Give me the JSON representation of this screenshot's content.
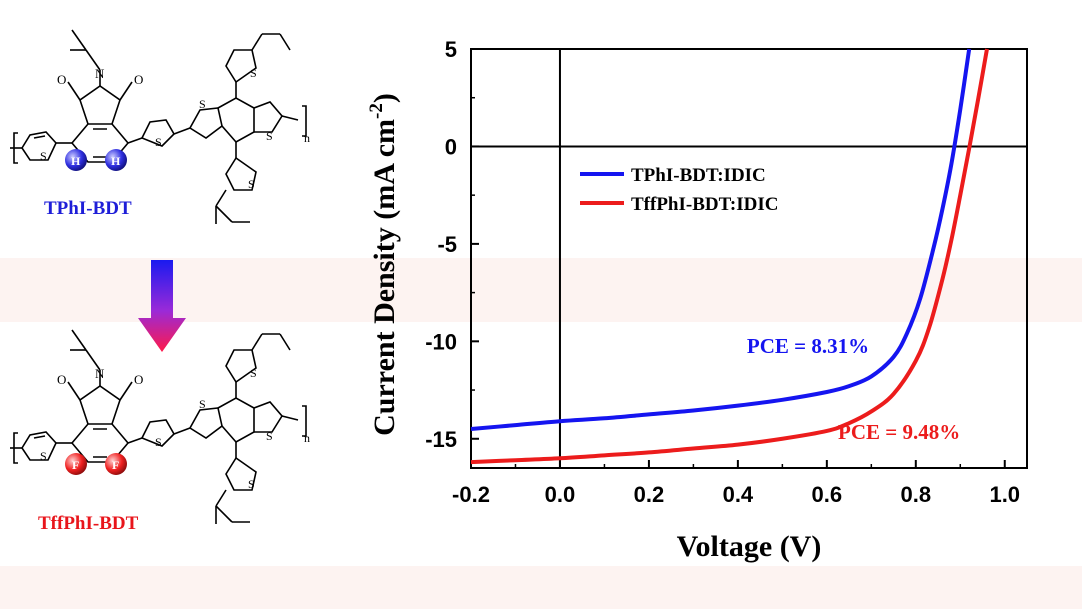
{
  "molecules": {
    "top_name": "TPhI-BDT",
    "bottom_name": "TffPhI-BDT",
    "top_substituent": "H",
    "bottom_substituent": "F",
    "top_color": "#1e1ed8",
    "bottom_color": "#e8151b",
    "sulfur": "S",
    "oxygen": "O",
    "nitrogen": "N",
    "repeat": "n"
  },
  "chart_data": {
    "type": "line",
    "xlabel": "Voltage (V)",
    "ylabel": "Current Density (mA cm",
    "ylabel_sup": "-2",
    "ylabel_end": ")",
    "xlim": [
      -0.2,
      1.05
    ],
    "ylim": [
      -16.5,
      5
    ],
    "xticks": [
      -0.2,
      0.0,
      0.2,
      0.4,
      0.6,
      0.8,
      1.0
    ],
    "xtick_labels": [
      "-0.2",
      "0.0",
      "0.2",
      "0.4",
      "0.6",
      "0.8",
      "1.0"
    ],
    "yticks": [
      5,
      0,
      -5,
      -10,
      -15
    ],
    "ytick_labels": [
      "5",
      "0",
      "-5",
      "-10",
      "-15"
    ],
    "legend_position": "upper-left",
    "series": [
      {
        "name": "TPhI-BDT:IDIC",
        "color": "#1515f0",
        "x": [
          -0.2,
          -0.1,
          0.0,
          0.1,
          0.2,
          0.3,
          0.4,
          0.5,
          0.6,
          0.65,
          0.7,
          0.75,
          0.78,
          0.81,
          0.84,
          0.86,
          0.88,
          0.9,
          0.92
        ],
        "y": [
          -14.5,
          -14.3,
          -14.1,
          -13.95,
          -13.75,
          -13.55,
          -13.3,
          -13.0,
          -12.6,
          -12.3,
          -11.8,
          -10.8,
          -9.6,
          -7.8,
          -5.2,
          -3.2,
          -0.9,
          1.9,
          5.0
        ]
      },
      {
        "name": "TffPhI-BDT:IDIC",
        "color": "#ec1c1c",
        "x": [
          -0.2,
          -0.1,
          0.0,
          0.1,
          0.2,
          0.3,
          0.4,
          0.5,
          0.6,
          0.65,
          0.7,
          0.75,
          0.8,
          0.83,
          0.86,
          0.88,
          0.9,
          0.92,
          0.94,
          0.96
        ],
        "y": [
          -16.2,
          -16.1,
          -16.0,
          -15.85,
          -15.7,
          -15.5,
          -15.3,
          -15.0,
          -14.6,
          -14.2,
          -13.6,
          -12.7,
          -11.0,
          -9.3,
          -6.8,
          -4.8,
          -2.5,
          -0.1,
          2.4,
          5.0
        ]
      }
    ],
    "annotations": [
      {
        "text": "PCE = 8.31%",
        "color": "#1515f0",
        "x": 0.695,
        "y": -10.6
      },
      {
        "text": "PCE = 9.48%",
        "color": "#ec1c1c",
        "x": 0.9,
        "y": -15.0
      }
    ]
  }
}
